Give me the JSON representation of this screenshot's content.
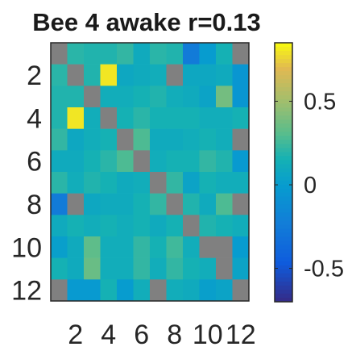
{
  "chart_data": {
    "type": "heatmap",
    "title": "Bee 4 awake r=0.13",
    "xlabel": "",
    "ylabel": "",
    "x_tick_labels": [
      "2",
      "4",
      "6",
      "8",
      "10",
      "12"
    ],
    "y_tick_labels": [
      "2",
      "4",
      "6",
      "8",
      "10",
      "12"
    ],
    "rows": 12,
    "cols": 12,
    "nan_color": "#808080",
    "colormap": "parula",
    "clim": [
      -0.7,
      0.85
    ],
    "colorbar_ticks": [
      {
        "value": 0.5,
        "label": "0.5"
      },
      {
        "value": 0,
        "label": "0"
      },
      {
        "value": -0.5,
        "label": "-0.5"
      }
    ],
    "values": [
      [
        null,
        0.2,
        0.18,
        0.18,
        0.22,
        0.1,
        0.2,
        0.18,
        -0.25,
        0.0,
        0.15,
        null
      ],
      [
        0.2,
        null,
        0.18,
        0.8,
        0.08,
        0.1,
        0.12,
        null,
        0.08,
        0.08,
        0.1,
        -0.05
      ],
      [
        0.18,
        0.18,
        null,
        0.12,
        0.12,
        0.15,
        0.18,
        0.12,
        0.1,
        0.05,
        0.38,
        -0.05
      ],
      [
        0.18,
        0.8,
        0.12,
        null,
        0.15,
        0.2,
        0.15,
        0.15,
        0.15,
        0.12,
        0.12,
        0.15
      ],
      [
        0.22,
        0.08,
        0.12,
        0.15,
        null,
        0.28,
        0.1,
        0.1,
        0.12,
        0.15,
        0.12,
        null
      ],
      [
        0.1,
        0.1,
        0.15,
        0.2,
        0.28,
        null,
        0.12,
        0.15,
        0.15,
        0.22,
        0.18,
        -0.02
      ],
      [
        0.2,
        0.12,
        0.18,
        0.15,
        0.1,
        0.12,
        null,
        0.22,
        0.05,
        0.15,
        0.12,
        0.12
      ],
      [
        -0.25,
        null,
        0.08,
        0.1,
        0.1,
        0.15,
        0.22,
        null,
        0.18,
        0.1,
        0.28,
        null
      ],
      [
        0.1,
        0.15,
        0.12,
        0.15,
        0.12,
        0.15,
        0.1,
        0.15,
        null,
        0.18,
        0.15,
        0.12
      ],
      [
        0.02,
        0.1,
        0.32,
        0.12,
        0.12,
        0.22,
        0.15,
        0.25,
        0.12,
        null,
        null,
        0.0
      ],
      [
        0.15,
        0.1,
        0.35,
        0.12,
        0.12,
        0.22,
        0.12,
        0.22,
        0.15,
        0.12,
        null,
        0.05
      ],
      [
        null,
        -0.02,
        -0.02,
        0.15,
        0.0,
        0.12,
        null,
        0.12,
        0.1,
        0.02,
        0.05,
        null
      ]
    ]
  }
}
